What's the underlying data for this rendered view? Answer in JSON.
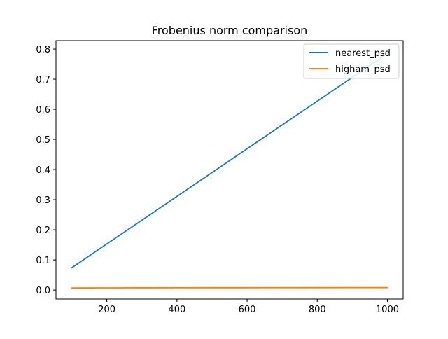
{
  "chart_data": {
    "type": "line",
    "title": "Frobenius norm comparison",
    "xlabel": "",
    "ylabel": "",
    "xlim": [
      55,
      1045
    ],
    "ylim": [
      -0.03,
      0.828
    ],
    "xticks": [
      200,
      400,
      600,
      800,
      1000
    ],
    "yticks": [
      0.0,
      0.1,
      0.2,
      0.3,
      0.4,
      0.5,
      0.6,
      0.7,
      0.8
    ],
    "xtick_labels": [
      "200",
      "400",
      "600",
      "800",
      "1000"
    ],
    "ytick_labels": [
      "0.0",
      "0.1",
      "0.2",
      "0.3",
      "0.4",
      "0.5",
      "0.6",
      "0.7",
      "0.8"
    ],
    "grid": false,
    "legend_position": "upper right",
    "x": [
      100,
      200,
      300,
      400,
      500,
      600,
      700,
      800,
      900,
      1000
    ],
    "series": [
      {
        "name": "nearest_psd",
        "color": "#1f77b4",
        "values": [
          0.074,
          0.153,
          0.232,
          0.311,
          0.39,
          0.469,
          0.548,
          0.627,
          0.706,
          0.785
        ]
      },
      {
        "name": "higham_psd",
        "color": "#ff7f0e",
        "values": [
          0.007,
          0.0072,
          0.0074,
          0.0075,
          0.0076,
          0.0077,
          0.0078,
          0.0079,
          0.008,
          0.0081
        ]
      }
    ]
  }
}
